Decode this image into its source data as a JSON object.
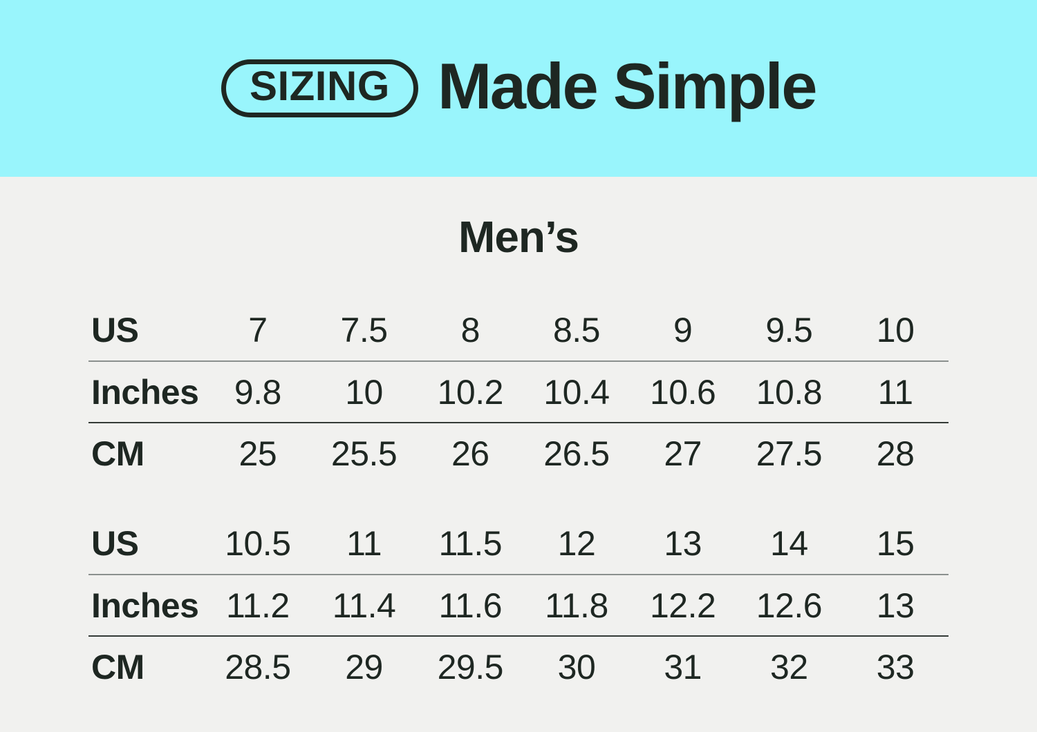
{
  "banner": {
    "badge": "SIZING",
    "title": "Made Simple"
  },
  "section_title": "Men’s",
  "colors": {
    "banner_bg": "#99F5FC",
    "body_bg": "#F1F1EF",
    "ink": "#1E2722",
    "line_light": "#8A908E",
    "line_dark": "#343B37"
  },
  "tables": [
    {
      "rows": [
        {
          "label": "US",
          "values": [
            "7",
            "7.5",
            "8",
            "8.5",
            "9",
            "9.5",
            "10"
          ]
        },
        {
          "label": "Inches",
          "values": [
            "9.8",
            "10",
            "10.2",
            "10.4",
            "10.6",
            "10.8",
            "11"
          ]
        },
        {
          "label": "CM",
          "values": [
            "25",
            "25.5",
            "26",
            "26.5",
            "27",
            "27.5",
            "28"
          ]
        }
      ]
    },
    {
      "rows": [
        {
          "label": "US",
          "values": [
            "10.5",
            "11",
            "11.5",
            "12",
            "13",
            "14",
            "15"
          ]
        },
        {
          "label": "Inches",
          "values": [
            "11.2",
            "11.4",
            "11.6",
            "11.8",
            "12.2",
            "12.6",
            "13"
          ]
        },
        {
          "label": "CM",
          "values": [
            "28.5",
            "29",
            "29.5",
            "30",
            "31",
            "32",
            "33"
          ]
        }
      ]
    }
  ],
  "chart_data": {
    "type": "table",
    "title": "SIZING Made Simple",
    "subtitle": "Men’s",
    "row_labels": [
      "US",
      "Inches",
      "CM"
    ],
    "tables": [
      {
        "US": [
          7,
          7.5,
          8,
          8.5,
          9,
          9.5,
          10
        ],
        "Inches": [
          9.8,
          10,
          10.2,
          10.4,
          10.6,
          10.8,
          11
        ],
        "CM": [
          25,
          25.5,
          26,
          26.5,
          27,
          27.5,
          28
        ]
      },
      {
        "US": [
          10.5,
          11,
          11.5,
          12,
          13,
          14,
          15
        ],
        "Inches": [
          11.2,
          11.4,
          11.6,
          11.8,
          12.2,
          12.6,
          13
        ],
        "CM": [
          28.5,
          29,
          29.5,
          30,
          31,
          32,
          33
        ]
      }
    ]
  }
}
